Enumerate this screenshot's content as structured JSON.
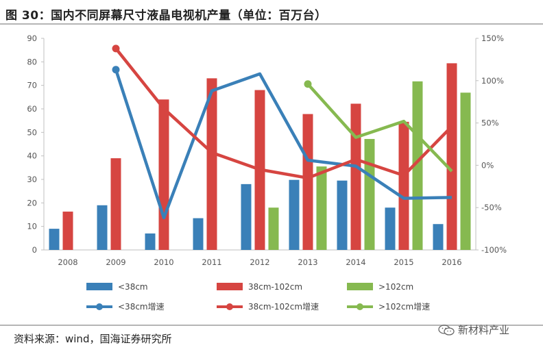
{
  "figure_title": "图 30：国内不同屏幕尺寸液晶电视机产量（单位：百万台）",
  "source_text": "资料来源：wind，国海证券研究所",
  "watermark": {
    "text": "新材料产业",
    "icon": "wechat-icon"
  },
  "colors": {
    "small": "#3a80b8",
    "mid": "#d64541",
    "large": "#86b950"
  },
  "chart_data": {
    "type": "bar",
    "title": "",
    "categories": [
      "2008",
      "2009",
      "2010",
      "2011",
      "2012",
      "2013",
      "2014",
      "2015",
      "2016"
    ],
    "y_ticks_left": [
      "0",
      "10",
      "20",
      "30",
      "40",
      "50",
      "60",
      "70",
      "80",
      "90"
    ],
    "y_ticks_right": [
      "-100%",
      "-50%",
      "0%",
      "50%",
      "100%",
      "150%"
    ],
    "ylim_left": [
      0,
      90
    ],
    "ylim_right": [
      -100,
      150
    ],
    "bar_series": [
      {
        "name": "<38cm",
        "values": [
          9,
          19,
          7,
          13.5,
          28,
          29.8,
          29.5,
          18,
          11
        ]
      },
      {
        "name": "38cm-102cm",
        "values": [
          16.3,
          39,
          64,
          73,
          68,
          57.8,
          62.2,
          54.5,
          79.4
        ]
      },
      {
        "name": ">102cm",
        "values": [
          null,
          null,
          null,
          null,
          18,
          35.5,
          47.2,
          71.7,
          66.9
        ]
      }
    ],
    "line_series": [
      {
        "name": "<38cm增速",
        "axis": "right",
        "values": [
          null,
          113,
          -62,
          88,
          108,
          6,
          -1,
          -39,
          -38
        ]
      },
      {
        "name": "38cm-102cm增速",
        "axis": "right",
        "values": [
          null,
          138,
          67,
          15,
          -5,
          -15,
          7,
          -12,
          46
        ]
      },
      {
        "name": ">102cm增速",
        "axis": "right",
        "values": [
          null,
          null,
          null,
          null,
          null,
          96,
          33,
          52,
          -7
        ]
      }
    ],
    "legend_position": "bottom",
    "grid": false
  }
}
